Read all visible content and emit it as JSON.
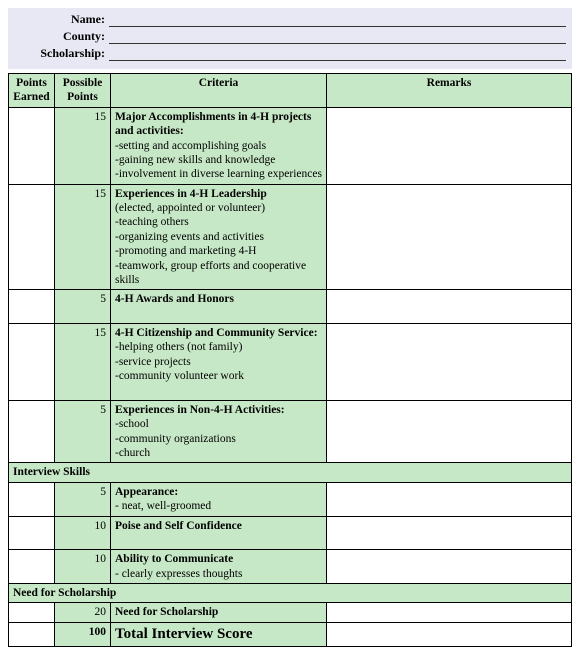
{
  "header": {
    "name_label": "Name:",
    "county_label": "County:",
    "scholarship_label": "Scholarship:"
  },
  "columns": {
    "earned": "Points Earned",
    "possible": "Possible Points",
    "criteria": "Criteria",
    "remarks": "Remarks"
  },
  "rows": [
    {
      "possible": "15",
      "title": "Major Accomplishments in 4-H projects and activities:",
      "lines": [
        "-setting and accomplishing goals",
        "-gaining new skills and knowledge",
        "-involvement in diverse learning experiences"
      ]
    },
    {
      "possible": "15",
      "title": "Experiences in 4-H Leadership",
      "subtitle": "(elected, appointed or volunteer)",
      "lines": [
        "-teaching others",
        "-organizing events and activities",
        "-promoting and marketing 4-H",
        "-teamwork, group efforts and cooperative skills"
      ]
    },
    {
      "possible": "5",
      "title": "4-H Awards and Honors",
      "lines": []
    },
    {
      "possible": "15",
      "title": "4-H Citizenship and Community Service:",
      "lines": [
        "-helping others (not family)",
        "-service projects",
        "-community volunteer work"
      ]
    },
    {
      "possible": "5",
      "title": "Experiences in Non-4-H Activities:",
      "lines": [
        "-school",
        "-community organizations",
        "-church"
      ]
    }
  ],
  "section_interview": "Interview Skills",
  "interview_rows": [
    {
      "possible": "5",
      "title": "Appearance:",
      "lines": [
        "- neat, well-groomed"
      ]
    },
    {
      "possible": "10",
      "title": "Poise and Self Confidence",
      "lines": []
    },
    {
      "possible": "10",
      "title": "Ability to Communicate",
      "lines": [
        "- clearly expresses thoughts"
      ]
    }
  ],
  "section_need": "Need for Scholarship",
  "need_row": {
    "possible": "20",
    "title": "Need for Scholarship"
  },
  "total": {
    "points": "100",
    "label": "Total Interview Score"
  }
}
